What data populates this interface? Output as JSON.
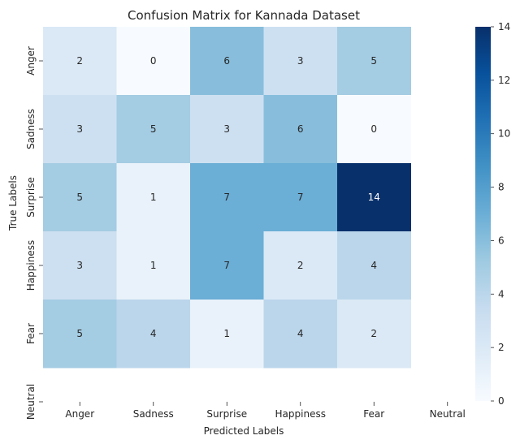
{
  "chart_data": {
    "type": "heatmap",
    "title": "Confusion Matrix for Kannada Dataset",
    "xlabel": "Predicted Labels",
    "ylabel": "True Labels",
    "x_categories": [
      "Anger",
      "Sadness",
      "Surprise",
      "Happiness",
      "Fear",
      "Neutral"
    ],
    "y_categories": [
      "Anger",
      "Sadness",
      "Surprise",
      "Happiness",
      "Fear",
      "Neutral"
    ],
    "values": [
      [
        2,
        0,
        6,
        3,
        5,
        null
      ],
      [
        3,
        5,
        3,
        6,
        0,
        null
      ],
      [
        5,
        1,
        7,
        7,
        14,
        null
      ],
      [
        3,
        1,
        7,
        2,
        4,
        null
      ],
      [
        5,
        4,
        1,
        4,
        2,
        null
      ],
      [
        null,
        null,
        null,
        null,
        null,
        null
      ]
    ],
    "colorbar": {
      "min": 0,
      "max": 14,
      "ticks": [
        0,
        2,
        4,
        6,
        8,
        10,
        12,
        14
      ],
      "colormap": "Blues"
    }
  }
}
